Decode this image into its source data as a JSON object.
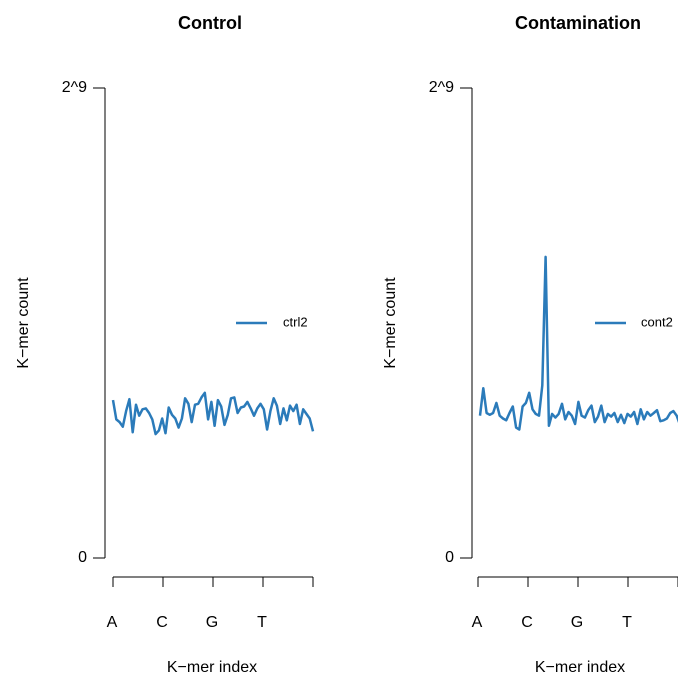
{
  "chart_data": [
    {
      "type": "line",
      "title": "Control",
      "xlabel": "K−mer index",
      "ylabel": "K−mer count",
      "x_tick_labels": [
        "A",
        "C",
        "G",
        "T"
      ],
      "y_tick_labels": [
        "0",
        "2^9"
      ],
      "ylim": [
        0,
        512
      ],
      "grid": false,
      "legend_position": "right",
      "series": [
        {
          "name": "ctrl2",
          "color": "#2b7bba",
          "values": [
            172,
            151,
            148,
            143,
            160,
            173,
            137,
            167,
            155,
            162,
            163,
            158,
            151,
            135,
            139,
            152,
            136,
            164,
            156,
            152,
            142,
            152,
            174,
            168,
            148,
            167,
            168,
            175,
            180,
            151,
            170,
            144,
            172,
            165,
            145,
            156,
            174,
            175,
            158,
            164,
            165,
            170,
            163,
            155,
            163,
            168,
            162,
            140,
            160,
            174,
            166,
            146,
            163,
            150,
            166,
            160,
            167,
            146,
            162,
            157,
            152,
            138
          ]
        }
      ]
    },
    {
      "type": "line",
      "title": "Contamination",
      "xlabel": "K−mer index",
      "ylabel": "K−mer count",
      "x_tick_labels": [
        "A",
        "C",
        "G",
        "T"
      ],
      "y_tick_labels": [
        "0",
        "2^9"
      ],
      "ylim": [
        0,
        512
      ],
      "grid": false,
      "legend_position": "right",
      "series": [
        {
          "name": "cont2",
          "color": "#2b7bba",
          "values": [
            155,
            185,
            158,
            156,
            158,
            169,
            155,
            152,
            150,
            158,
            165,
            142,
            140,
            165,
            169,
            180,
            162,
            157,
            155,
            188,
            328,
            144,
            157,
            153,
            157,
            168,
            151,
            159,
            155,
            146,
            170,
            155,
            153,
            161,
            166,
            148,
            154,
            166,
            148,
            157,
            154,
            158,
            148,
            156,
            147,
            157,
            154,
            159,
            146,
            162,
            151,
            159,
            155,
            158,
            161,
            149,
            150,
            152,
            158,
            160,
            155,
            145
          ]
        }
      ]
    }
  ]
}
